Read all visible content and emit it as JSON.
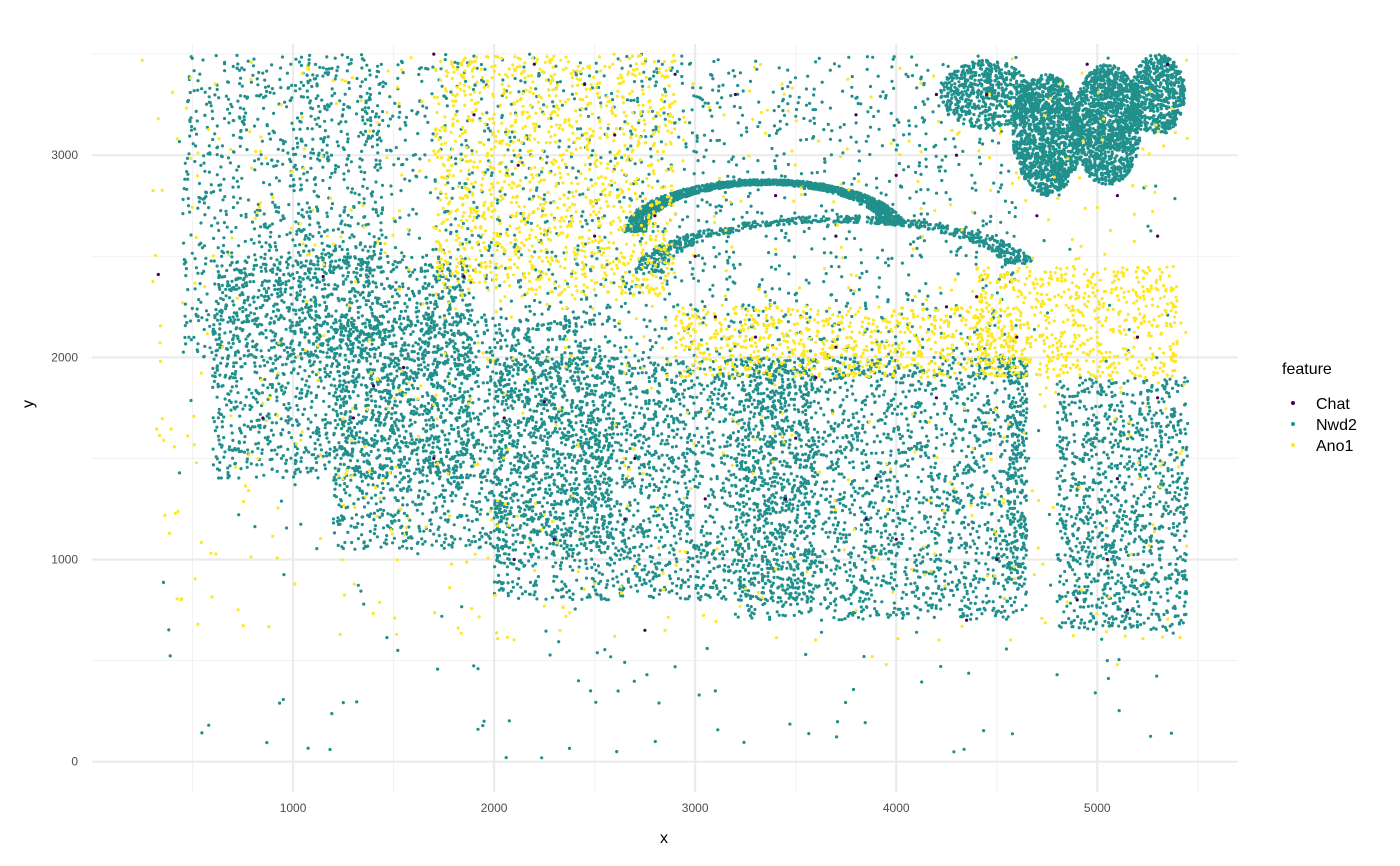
{
  "chart_data": {
    "type": "scatter",
    "title": "",
    "xlabel": "x",
    "ylabel": "y",
    "xlim": [
      0,
      5700
    ],
    "ylim": [
      -150,
      3550
    ],
    "x_major_ticks": [
      1000,
      2000,
      3000,
      4000,
      5000
    ],
    "x_minor_ticks": [
      500,
      1500,
      2500,
      3500,
      4500,
      5500
    ],
    "y_major_ticks": [
      0,
      1000,
      2000,
      3000
    ],
    "y_minor_ticks": [
      500,
      1500,
      2500,
      3500
    ],
    "grid": true,
    "legend": {
      "title": "feature",
      "placement": "right"
    },
    "series": [
      {
        "name": "Chat",
        "color": "#440154",
        "points": [
          [
            330,
            2410
          ],
          [
            1400,
            1860
          ],
          [
            2250,
            1780
          ],
          [
            2600,
            3100
          ],
          [
            2120,
            2950
          ],
          [
            1850,
            2400
          ],
          [
            3000,
            2500
          ],
          [
            3400,
            2800
          ],
          [
            4300,
            3000
          ],
          [
            3700,
            2600
          ],
          [
            4400,
            2300
          ],
          [
            4200,
            1800
          ],
          [
            3500,
            1600
          ],
          [
            3050,
            1300
          ],
          [
            2700,
            1500
          ],
          [
            2300,
            1100
          ],
          [
            2100,
            1000
          ],
          [
            1700,
            1500
          ],
          [
            1300,
            1700
          ],
          [
            850,
            1700
          ],
          [
            4200,
            3300
          ],
          [
            4700,
            2700
          ],
          [
            5100,
            2800
          ],
          [
            5200,
            2100
          ],
          [
            5300,
            1800
          ],
          [
            5100,
            1400
          ],
          [
            4900,
            800
          ],
          [
            5150,
            750
          ],
          [
            4500,
            1000
          ],
          [
            4000,
            1100
          ],
          [
            3900,
            1400
          ],
          [
            3600,
            1900
          ],
          [
            3100,
            2200
          ],
          [
            2800,
            2700
          ],
          [
            2450,
            3350
          ],
          [
            2900,
            3400
          ],
          [
            3200,
            3300
          ],
          [
            3800,
            3200
          ],
          [
            4000,
            2900
          ],
          [
            4600,
            2100
          ],
          [
            5050,
            1000
          ],
          [
            5300,
            2600
          ],
          [
            5350,
            3450
          ],
          [
            4450,
            3300
          ],
          [
            4950,
            3450
          ],
          [
            2200,
            3450
          ],
          [
            1700,
            3500
          ],
          [
            1900,
            3200
          ],
          [
            2500,
            2600
          ],
          [
            3300,
            2100
          ],
          [
            3700,
            2050
          ],
          [
            4250,
            2250
          ],
          [
            2750,
            650
          ],
          [
            4350,
            700
          ],
          [
            3850,
            1200
          ],
          [
            3450,
            1300
          ],
          [
            2650,
            1200
          ],
          [
            2050,
            1700
          ],
          [
            1550,
            1950
          ],
          [
            1150,
            2400
          ]
        ]
      },
      {
        "name": "Nwd2",
        "color": "#21908C",
        "clusters": [
          {
            "shape": "band",
            "x0": 450,
            "x1": 1450,
            "y_top": 3500,
            "y_bottom": 2000,
            "n": 900
          },
          {
            "shape": "band",
            "x0": 600,
            "x1": 1900,
            "y_top": 2500,
            "y_bottom": 1400,
            "n": 1600
          },
          {
            "shape": "band",
            "x0": 1200,
            "x1": 2600,
            "y_top": 2200,
            "y_bottom": 1050,
            "n": 1800
          },
          {
            "shape": "band",
            "x0": 2000,
            "x1": 3600,
            "y_top": 2000,
            "y_bottom": 800,
            "n": 2200
          },
          {
            "shape": "band",
            "x0": 3200,
            "x1": 4650,
            "y_top": 2000,
            "y_bottom": 700,
            "n": 2000
          },
          {
            "shape": "band",
            "x0": 4800,
            "x1": 5450,
            "y_top": 1900,
            "y_bottom": 650,
            "n": 1100
          },
          {
            "shape": "band",
            "x0": 1000,
            "x1": 4600,
            "y_top": 3500,
            "y_bottom": 1900,
            "n": 1700
          },
          {
            "shape": "band",
            "x0": 4550,
            "x1": 4650,
            "y_top": 2000,
            "y_bottom": 900,
            "n": 220
          },
          {
            "shape": "ellipse",
            "cx": 4750,
            "cy": 3100,
            "rx": 170,
            "ry": 300,
            "n": 1400
          },
          {
            "shape": "ellipse",
            "cx": 5050,
            "cy": 3150,
            "rx": 170,
            "ry": 300,
            "n": 1400
          },
          {
            "shape": "ellipse",
            "cx": 4450,
            "cy": 3300,
            "rx": 230,
            "ry": 170,
            "n": 600
          },
          {
            "shape": "ellipse",
            "cx": 5300,
            "cy": 3300,
            "rx": 140,
            "ry": 200,
            "n": 600
          },
          {
            "shape": "arc",
            "cx": 3350,
            "cy": 2700,
            "rx": 700,
            "ry": 300,
            "n": 1500
          },
          {
            "shape": "arc",
            "cx": 3700,
            "cy": 2500,
            "rx": 1000,
            "ry": 330,
            "n": 600
          },
          {
            "shape": "scatter",
            "x0": 300,
            "x1": 5450,
            "y_top": 3500,
            "y_bottom": 0,
            "n": 300
          }
        ],
        "outliers": [
          [
            1920,
            460
          ],
          [
            1950,
            200
          ],
          [
            1920,
            160
          ],
          [
            2060,
            20
          ],
          [
            2420,
            400
          ],
          [
            2480,
            350
          ],
          [
            2610,
            50
          ],
          [
            2760,
            430
          ],
          [
            2900,
            470
          ],
          [
            3020,
            330
          ],
          [
            3060,
            560
          ],
          [
            3100,
            350
          ],
          [
            2820,
            290
          ],
          [
            3550,
            530
          ],
          [
            4800,
            430
          ],
          [
            4990,
            340
          ],
          [
            5050,
            500
          ],
          [
            490,
            2180
          ],
          [
            1010,
            1370
          ]
        ]
      },
      {
        "name": "Ano1",
        "color": "#FDE725",
        "clusters": [
          {
            "shape": "band",
            "x0": 1700,
            "x1": 2900,
            "y_top": 3500,
            "y_bottom": 2300,
            "n": 1200
          },
          {
            "shape": "band",
            "x0": 2900,
            "x1": 4600,
            "y_top": 2250,
            "y_bottom": 1900,
            "n": 700
          },
          {
            "shape": "band",
            "x0": 4400,
            "x1": 5400,
            "y_top": 2450,
            "y_bottom": 1900,
            "n": 600
          },
          {
            "shape": "scatter",
            "x0": 300,
            "x1": 5450,
            "y_top": 3500,
            "y_bottom": 600,
            "n": 700
          }
        ],
        "outliers": [
          [
            250,
            3470
          ],
          [
            330,
            3180
          ],
          [
            560,
            2350
          ],
          [
            650,
            2050
          ],
          [
            2250,
            770
          ],
          [
            2500,
            880
          ],
          [
            2600,
            620
          ],
          [
            2850,
            650
          ],
          [
            3880,
            520
          ],
          [
            3950,
            480
          ],
          [
            5100,
            480
          ],
          [
            4850,
            790
          ]
        ]
      }
    ]
  }
}
